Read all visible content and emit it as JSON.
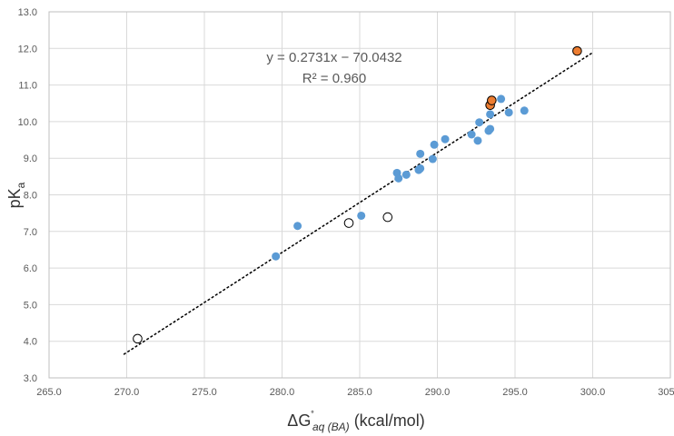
{
  "chart_data": {
    "type": "scatter",
    "xlabel": {
      "main": "ΔG",
      "sup": "˚",
      "sub": "aq (BA)",
      "unit": "(kcal/mol)"
    },
    "ylabel": {
      "main": "pK",
      "sub": "a"
    },
    "xlim": [
      265.0,
      305.0
    ],
    "ylim": [
      3.0,
      13.0
    ],
    "x_ticks": [
      "265.0",
      "270.0",
      "275.0",
      "280.0",
      "285.0",
      "290.0",
      "295.0",
      "300.0",
      "305.0"
    ],
    "y_ticks": [
      "3.0",
      "4.0",
      "5.0",
      "6.0",
      "7.0",
      "8.0",
      "9.0",
      "10.0",
      "11.0",
      "12.0",
      "13.0"
    ],
    "grid": true,
    "legend": "none",
    "colors": {
      "blue": "#5b9bd5",
      "orange": "#ed7d31",
      "open_fill": "#ffffff",
      "marker_edge": "#000000",
      "trend": "#000000",
      "grid": "#d9d9d9"
    },
    "series": [
      {
        "style": "filled-blue",
        "points": [
          [
            279.6,
            6.32
          ],
          [
            281.0,
            7.15
          ],
          [
            285.1,
            7.43
          ],
          [
            287.4,
            8.6
          ],
          [
            287.5,
            8.45
          ],
          [
            288.0,
            8.55
          ],
          [
            288.8,
            8.68
          ],
          [
            288.9,
            8.72
          ],
          [
            288.9,
            9.12
          ],
          [
            289.7,
            8.98
          ],
          [
            289.8,
            9.37
          ],
          [
            290.5,
            9.52
          ],
          [
            292.2,
            9.65
          ],
          [
            292.6,
            9.48
          ],
          [
            292.7,
            9.98
          ],
          [
            293.3,
            9.75
          ],
          [
            293.4,
            9.8
          ],
          [
            293.4,
            10.2
          ],
          [
            294.1,
            10.62
          ],
          [
            294.6,
            10.25
          ],
          [
            295.6,
            10.3
          ]
        ]
      },
      {
        "style": "filled-orange",
        "points": [
          [
            293.4,
            10.45
          ],
          [
            293.5,
            10.58
          ],
          [
            299.0,
            11.93
          ]
        ]
      },
      {
        "style": "open",
        "points": [
          [
            270.7,
            4.07
          ],
          [
            284.3,
            7.23
          ],
          [
            286.8,
            7.39
          ]
        ]
      }
    ],
    "trendline": {
      "slope": 0.2731,
      "intercept": -70.0432,
      "x_range": [
        269.8,
        300.0
      ],
      "equation": "y = 0.2731x − 70.0432",
      "r2": "R² = 0.960"
    }
  }
}
